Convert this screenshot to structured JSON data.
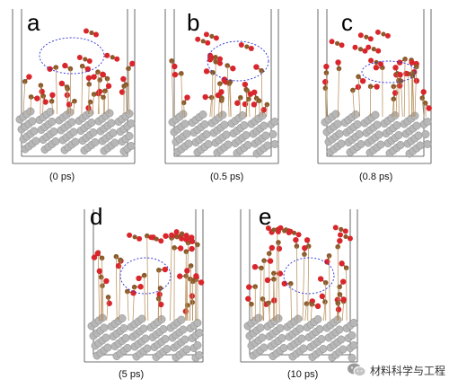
{
  "figure": {
    "panels": [
      {
        "label": "a",
        "time": "(0 ps)"
      },
      {
        "label": "b",
        "time": "(0.5 ps)"
      },
      {
        "label": "c",
        "time": "(0.8 ps)"
      },
      {
        "label": "d",
        "time": "(5 ps)"
      },
      {
        "label": "e",
        "time": "(10 ps)"
      }
    ],
    "watermark": "材料科学与工程",
    "colors": {
      "oxygen": "#d9262c",
      "carbon": "#8a5a2b",
      "metal": "#b7b7b7",
      "highlight": "#2a2ad8",
      "frame": "#444444"
    },
    "icons": {
      "watermark": "wechat-icon"
    }
  }
}
